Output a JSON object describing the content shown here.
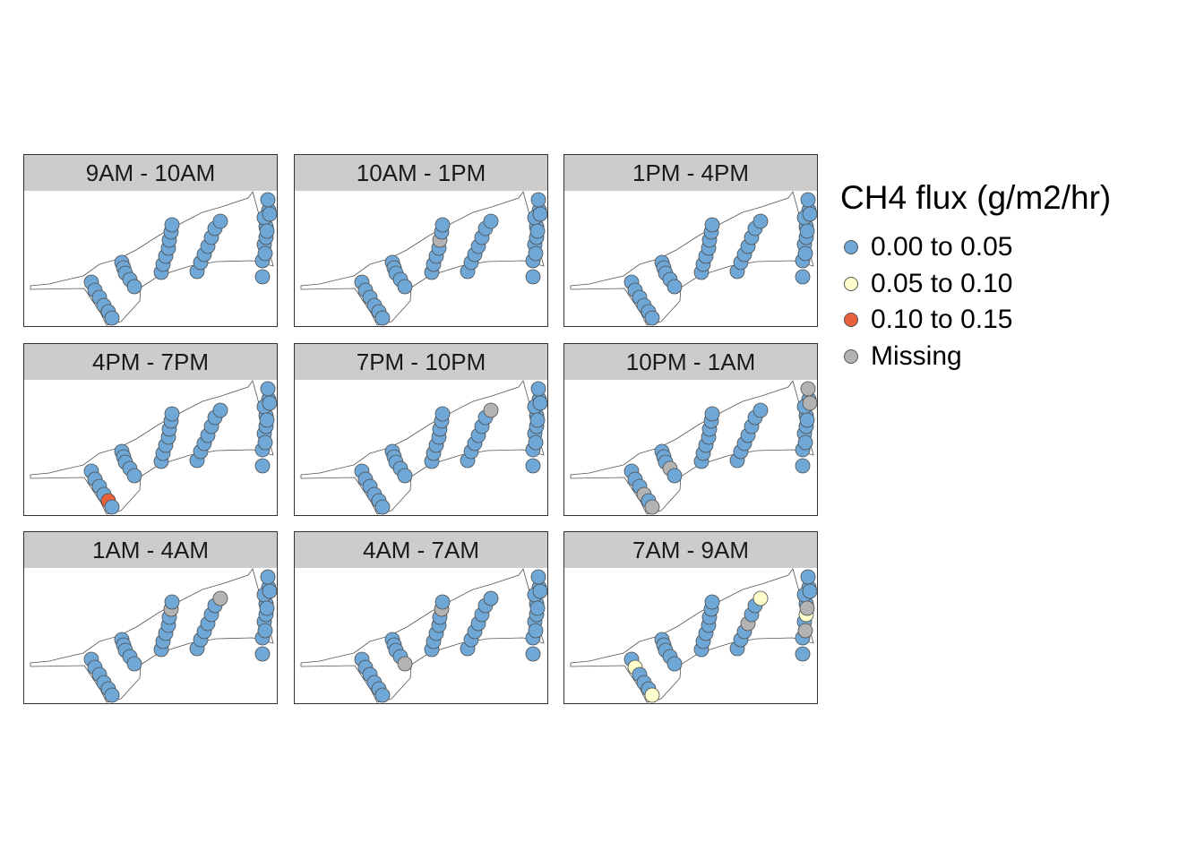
{
  "legend": {
    "title": "CH4 flux (g/m2/hr)",
    "items": [
      {
        "label": "0.00 to 0.05",
        "color": "#6fa8d6"
      },
      {
        "label": "0.05 to 0.10",
        "color": "#ffffcc"
      },
      {
        "label": "0.10 to 0.15",
        "color": "#e8603c"
      },
      {
        "label": "Missing",
        "color": "#b3b3b3"
      }
    ]
  },
  "category_colors": {
    "low": "#6fa8d6",
    "mid": "#ffffcc",
    "high": "#e8603c",
    "missing": "#b3b3b3"
  },
  "panels": [
    {
      "title": "9AM - 10AM",
      "changes": {}
    },
    {
      "title": "10AM - 1PM",
      "changes": {
        "15": "missing"
      }
    },
    {
      "title": "1PM - 4PM",
      "changes": {}
    },
    {
      "title": "4PM - 7PM",
      "changes": {
        "4": "high"
      }
    },
    {
      "title": "7PM - 10PM",
      "changes": {
        "24": "missing"
      }
    },
    {
      "title": "10PM - 1AM",
      "changes": {
        "3": "missing",
        "5": "missing",
        "9": "missing",
        "32": "missing",
        "33": "missing"
      }
    },
    {
      "title": "1AM - 4AM",
      "changes": {
        "16": "missing",
        "24": "missing"
      }
    },
    {
      "title": "4AM - 7AM",
      "changes": {
        "10": "missing",
        "16": "missing"
      }
    },
    {
      "title": "7AM - 9AM",
      "changes": {
        "1": "mid",
        "5": "mid",
        "21": "missing",
        "24": "mid",
        "31": "mid",
        "34": "missing",
        "35": "missing"
      }
    }
  ]
}
